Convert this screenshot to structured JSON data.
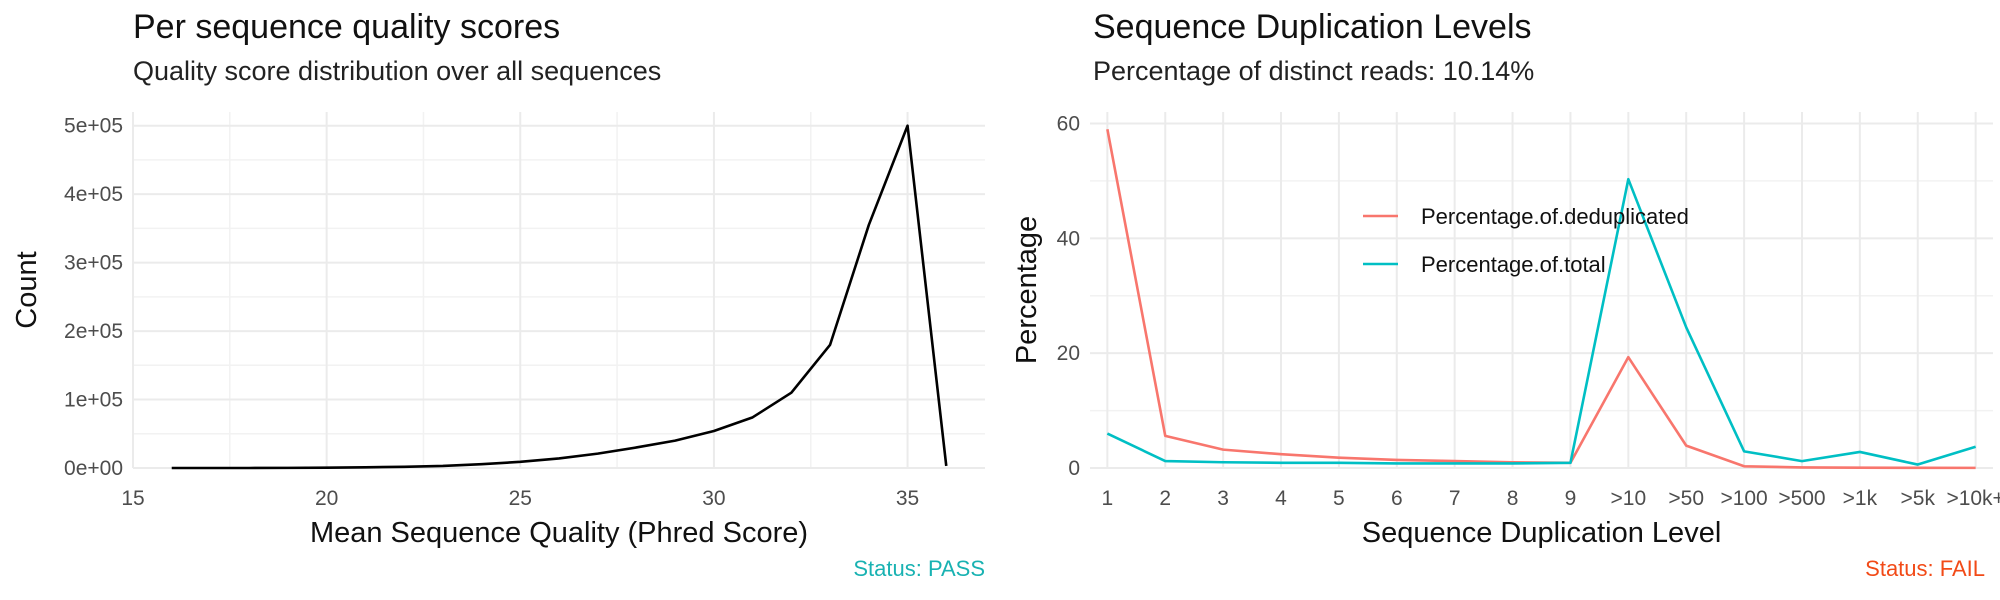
{
  "colors": {
    "pass": "#19b2b2",
    "fail": "#f24a17",
    "deduplicated": "#f8766d",
    "total": "#00bfc4",
    "line": "#000000"
  },
  "left": {
    "title": "Per sequence quality scores",
    "subtitle": "Quality score distribution over all sequences",
    "status": "Status: PASS",
    "chart_data": {
      "type": "line",
      "title": "Per sequence quality scores",
      "subtitle": "Quality score distribution over all sequences",
      "xlabel": "Mean Sequence Quality (Phred Score)",
      "ylabel": "Count",
      "xlim": [
        15,
        37
      ],
      "ylim": [
        0,
        520000
      ],
      "x_ticks": [
        15,
        20,
        25,
        30,
        35
      ],
      "y_ticks": [
        0,
        100000,
        200000,
        300000,
        400000,
        500000
      ],
      "y_tick_labels": [
        "0e+00",
        "1e+05",
        "2e+05",
        "3e+05",
        "4e+05",
        "5e+05"
      ],
      "grid": true,
      "series": [
        {
          "x": [
            16,
            17,
            18,
            19,
            20,
            21,
            22,
            23,
            24,
            25,
            26,
            27,
            28,
            29,
            30,
            31,
            32,
            33,
            34,
            35,
            36
          ],
          "y": [
            0,
            0,
            0,
            200,
            500,
            1000,
            1800,
            3000,
            5500,
            9000,
            14000,
            21000,
            30000,
            40000,
            54000,
            74000,
            110000,
            180000,
            355000,
            500000,
            3000
          ]
        }
      ]
    }
  },
  "right": {
    "title": "Sequence Duplication Levels",
    "subtitle": "Percentage of distinct reads: 10.14%",
    "status": "Status: FAIL",
    "chart_data": {
      "type": "line",
      "title": "Sequence Duplication Levels",
      "subtitle": "Percentage of distinct reads: 10.14%",
      "xlabel": "Sequence Duplication Level",
      "ylabel": "Percentage",
      "categories": [
        "1",
        "2",
        "3",
        "4",
        "5",
        "6",
        "7",
        "8",
        "9",
        ">10",
        ">50",
        ">100",
        ">500",
        ">1k",
        ">5k",
        ">10k+"
      ],
      "ylim": [
        0,
        62
      ],
      "y_ticks": [
        0,
        20,
        40,
        60
      ],
      "grid": true,
      "legend_position": "top-center",
      "series": [
        {
          "name": "Percentage.of.deduplicated",
          "values": [
            59.0,
            5.6,
            3.2,
            2.4,
            1.8,
            1.4,
            1.2,
            1.0,
            0.9,
            19.3,
            3.9,
            0.3,
            0.1,
            0.05,
            0.03,
            0.02
          ]
        },
        {
          "name": "Percentage.of.total",
          "values": [
            6.0,
            1.2,
            1.0,
            0.9,
            0.9,
            0.8,
            0.8,
            0.8,
            0.9,
            50.3,
            24.5,
            2.9,
            1.2,
            2.8,
            0.6,
            3.7
          ]
        }
      ]
    }
  }
}
